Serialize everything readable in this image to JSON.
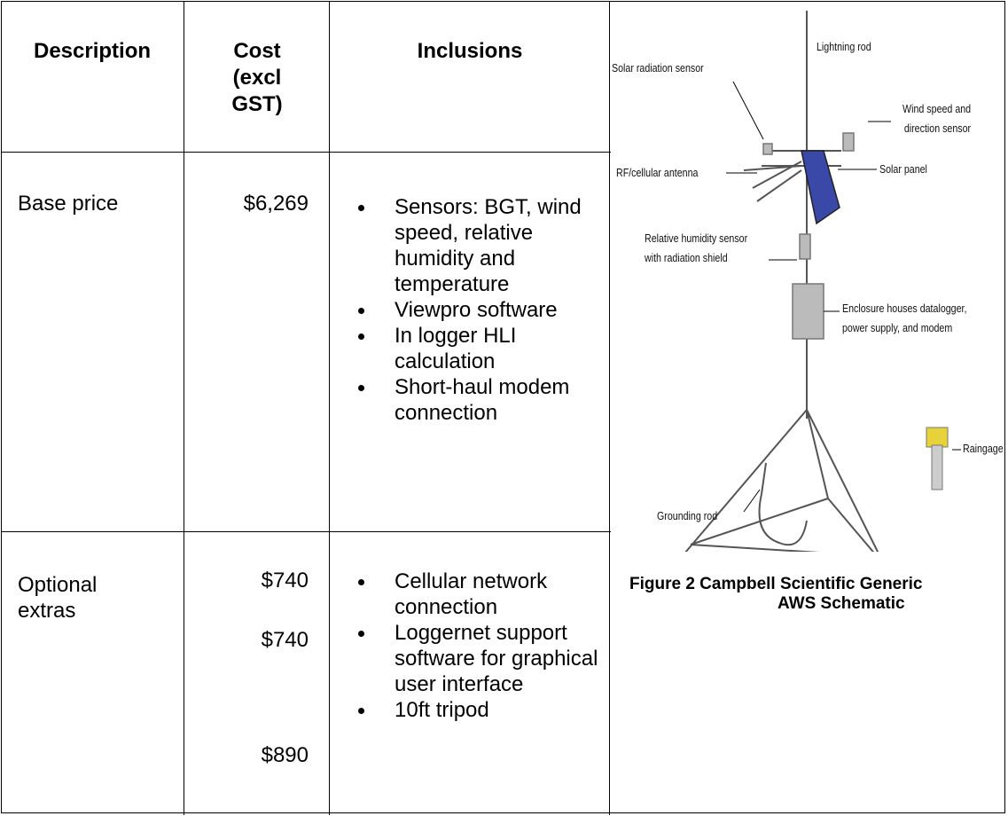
{
  "table": {
    "header": [
      "Description",
      "Cost (excl GST)",
      "Inclusions"
    ],
    "rows": [
      {
        "description": "Base price",
        "costs": [
          "$6,269"
        ],
        "inclusions": [
          "Sensors: BGT, wind speed, relative humidity and temperature",
          "Viewpro software",
          "In logger HLI calculation",
          "Short-haul modem connection"
        ]
      },
      {
        "description": "Optional extras",
        "costs": [
          "$740",
          "$740",
          "$890"
        ],
        "inclusions": [
          "Cellular network connection",
          "Loggernet support software for graphical user interface",
          "10ft tripod"
        ]
      }
    ]
  },
  "figure": {
    "labels": [
      {
        "lines": [
          "Lightning rod"
        ]
      },
      {
        "lines": [
          "Solar radiation sensor"
        ]
      },
      {
        "lines": [
          "Wind speed and",
          "direction sensor"
        ]
      },
      {
        "lines": [
          "RF/cellular antenna"
        ]
      },
      {
        "lines": [
          "Solar panel"
        ]
      },
      {
        "lines": [
          "Relative humidity sensor",
          "with radiation shield"
        ]
      },
      {
        "lines": [
          "Enclosure houses datalogger,",
          "power supply, and modem"
        ]
      },
      {
        "lines": [
          "Raingage"
        ]
      },
      {
        "lines": [
          "Grounding rod"
        ]
      }
    ],
    "caption": [
      "Figure 2 Campbell Scientific Generic",
      "AWS Schematic"
    ]
  }
}
